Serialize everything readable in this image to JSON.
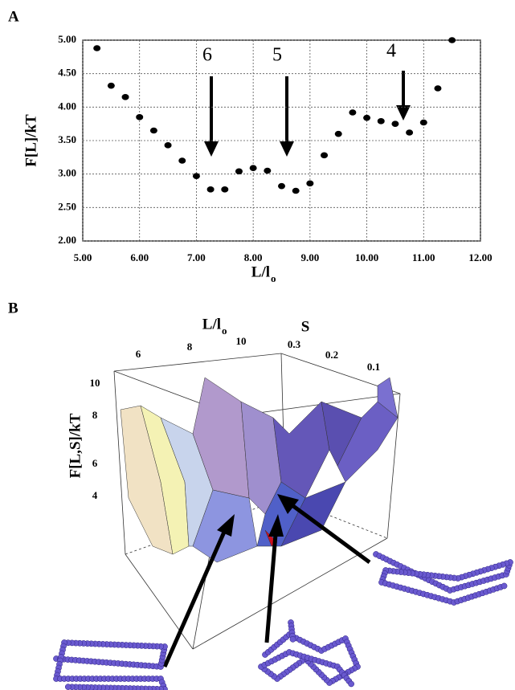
{
  "chart_data": [
    {
      "type": "scatter",
      "panel": "A",
      "xlabel": {
        "main": "L/l",
        "sub": "o"
      },
      "ylabel": "F[L]/kT",
      "x": [
        5.25,
        5.5,
        5.75,
        6.0,
        6.25,
        6.5,
        6.75,
        7.0,
        7.25,
        7.5,
        7.75,
        8.0,
        8.25,
        8.5,
        8.75,
        9.0,
        9.25,
        9.5,
        9.75,
        10.0,
        10.25,
        10.5,
        10.75,
        11.0,
        11.25,
        11.5
      ],
      "values": [
        4.88,
        4.32,
        4.15,
        3.85,
        3.65,
        3.43,
        3.2,
        2.97,
        2.77,
        2.77,
        3.04,
        3.09,
        3.05,
        2.82,
        2.75,
        2.86,
        3.28,
        3.6,
        3.92,
        3.84,
        3.79,
        3.75,
        3.62,
        3.77,
        4.28,
        5.0
      ],
      "color": "#000000",
      "xlim": [
        5,
        12
      ],
      "ylim": [
        2,
        5
      ],
      "xticks": [
        {
          "value": 5,
          "label": "5.00"
        },
        {
          "value": 6,
          "label": "6.00"
        },
        {
          "value": 7,
          "label": "7.00"
        },
        {
          "value": 8,
          "label": "8.00"
        },
        {
          "value": 9,
          "label": "9.00"
        },
        {
          "value": 10,
          "label": "10.00"
        },
        {
          "value": 11,
          "label": "11.00"
        },
        {
          "value": 12,
          "label": "12.00"
        }
      ],
      "yticks": [
        {
          "value": 2,
          "label": "2.00"
        },
        {
          "value": 2.5,
          "label": "2.50"
        },
        {
          "value": 3,
          "label": "3.00"
        },
        {
          "value": 3.5,
          "label": "3.50"
        },
        {
          "value": 4,
          "label": "4.00"
        },
        {
          "value": 4.5,
          "label": "4.50"
        },
        {
          "value": 5,
          "label": "5.00"
        }
      ],
      "grid": true,
      "annotations": [
        "6",
        "5",
        "4"
      ]
    },
    {
      "type": "surface3d",
      "panel": "B",
      "xlabel": {
        "main": "L/l",
        "sub": "o"
      },
      "ylabel": "S",
      "zlabel": "F[L,S]/kT",
      "xticks": [
        6,
        8,
        10
      ],
      "yticks": [
        0.3,
        0.2,
        0.1
      ],
      "zticks": [
        10,
        8,
        6,
        4
      ]
    }
  ]
}
